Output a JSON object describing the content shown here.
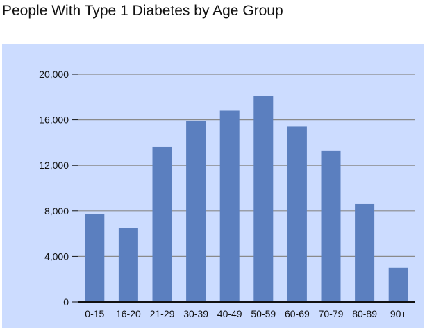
{
  "title": "People With Type 1 Diabetes by Age Group",
  "colors": {
    "background": "#ccdcff",
    "bar": "#5b7fbf",
    "grid": "#8a8a8a",
    "axis": "#111111"
  },
  "chart_data": {
    "type": "bar",
    "title": "People With Type 1 Diabetes by Age Group",
    "xlabel": "",
    "ylabel": "",
    "categories": [
      "0-15",
      "16-20",
      "21-29",
      "30-39",
      "40-49",
      "50-59",
      "60-69",
      "70-79",
      "80-89",
      "90+"
    ],
    "values": [
      7700,
      6500,
      13600,
      15900,
      16800,
      18100,
      15400,
      13300,
      8600,
      3000
    ],
    "ylim": [
      0,
      20000
    ],
    "yticks": [
      0,
      4000,
      8000,
      12000,
      16000,
      20000
    ],
    "ytick_labels": [
      "0",
      "4,000",
      "8,000",
      "12,000",
      "16,000",
      "20,000"
    ],
    "grid": true,
    "legend": "none"
  }
}
